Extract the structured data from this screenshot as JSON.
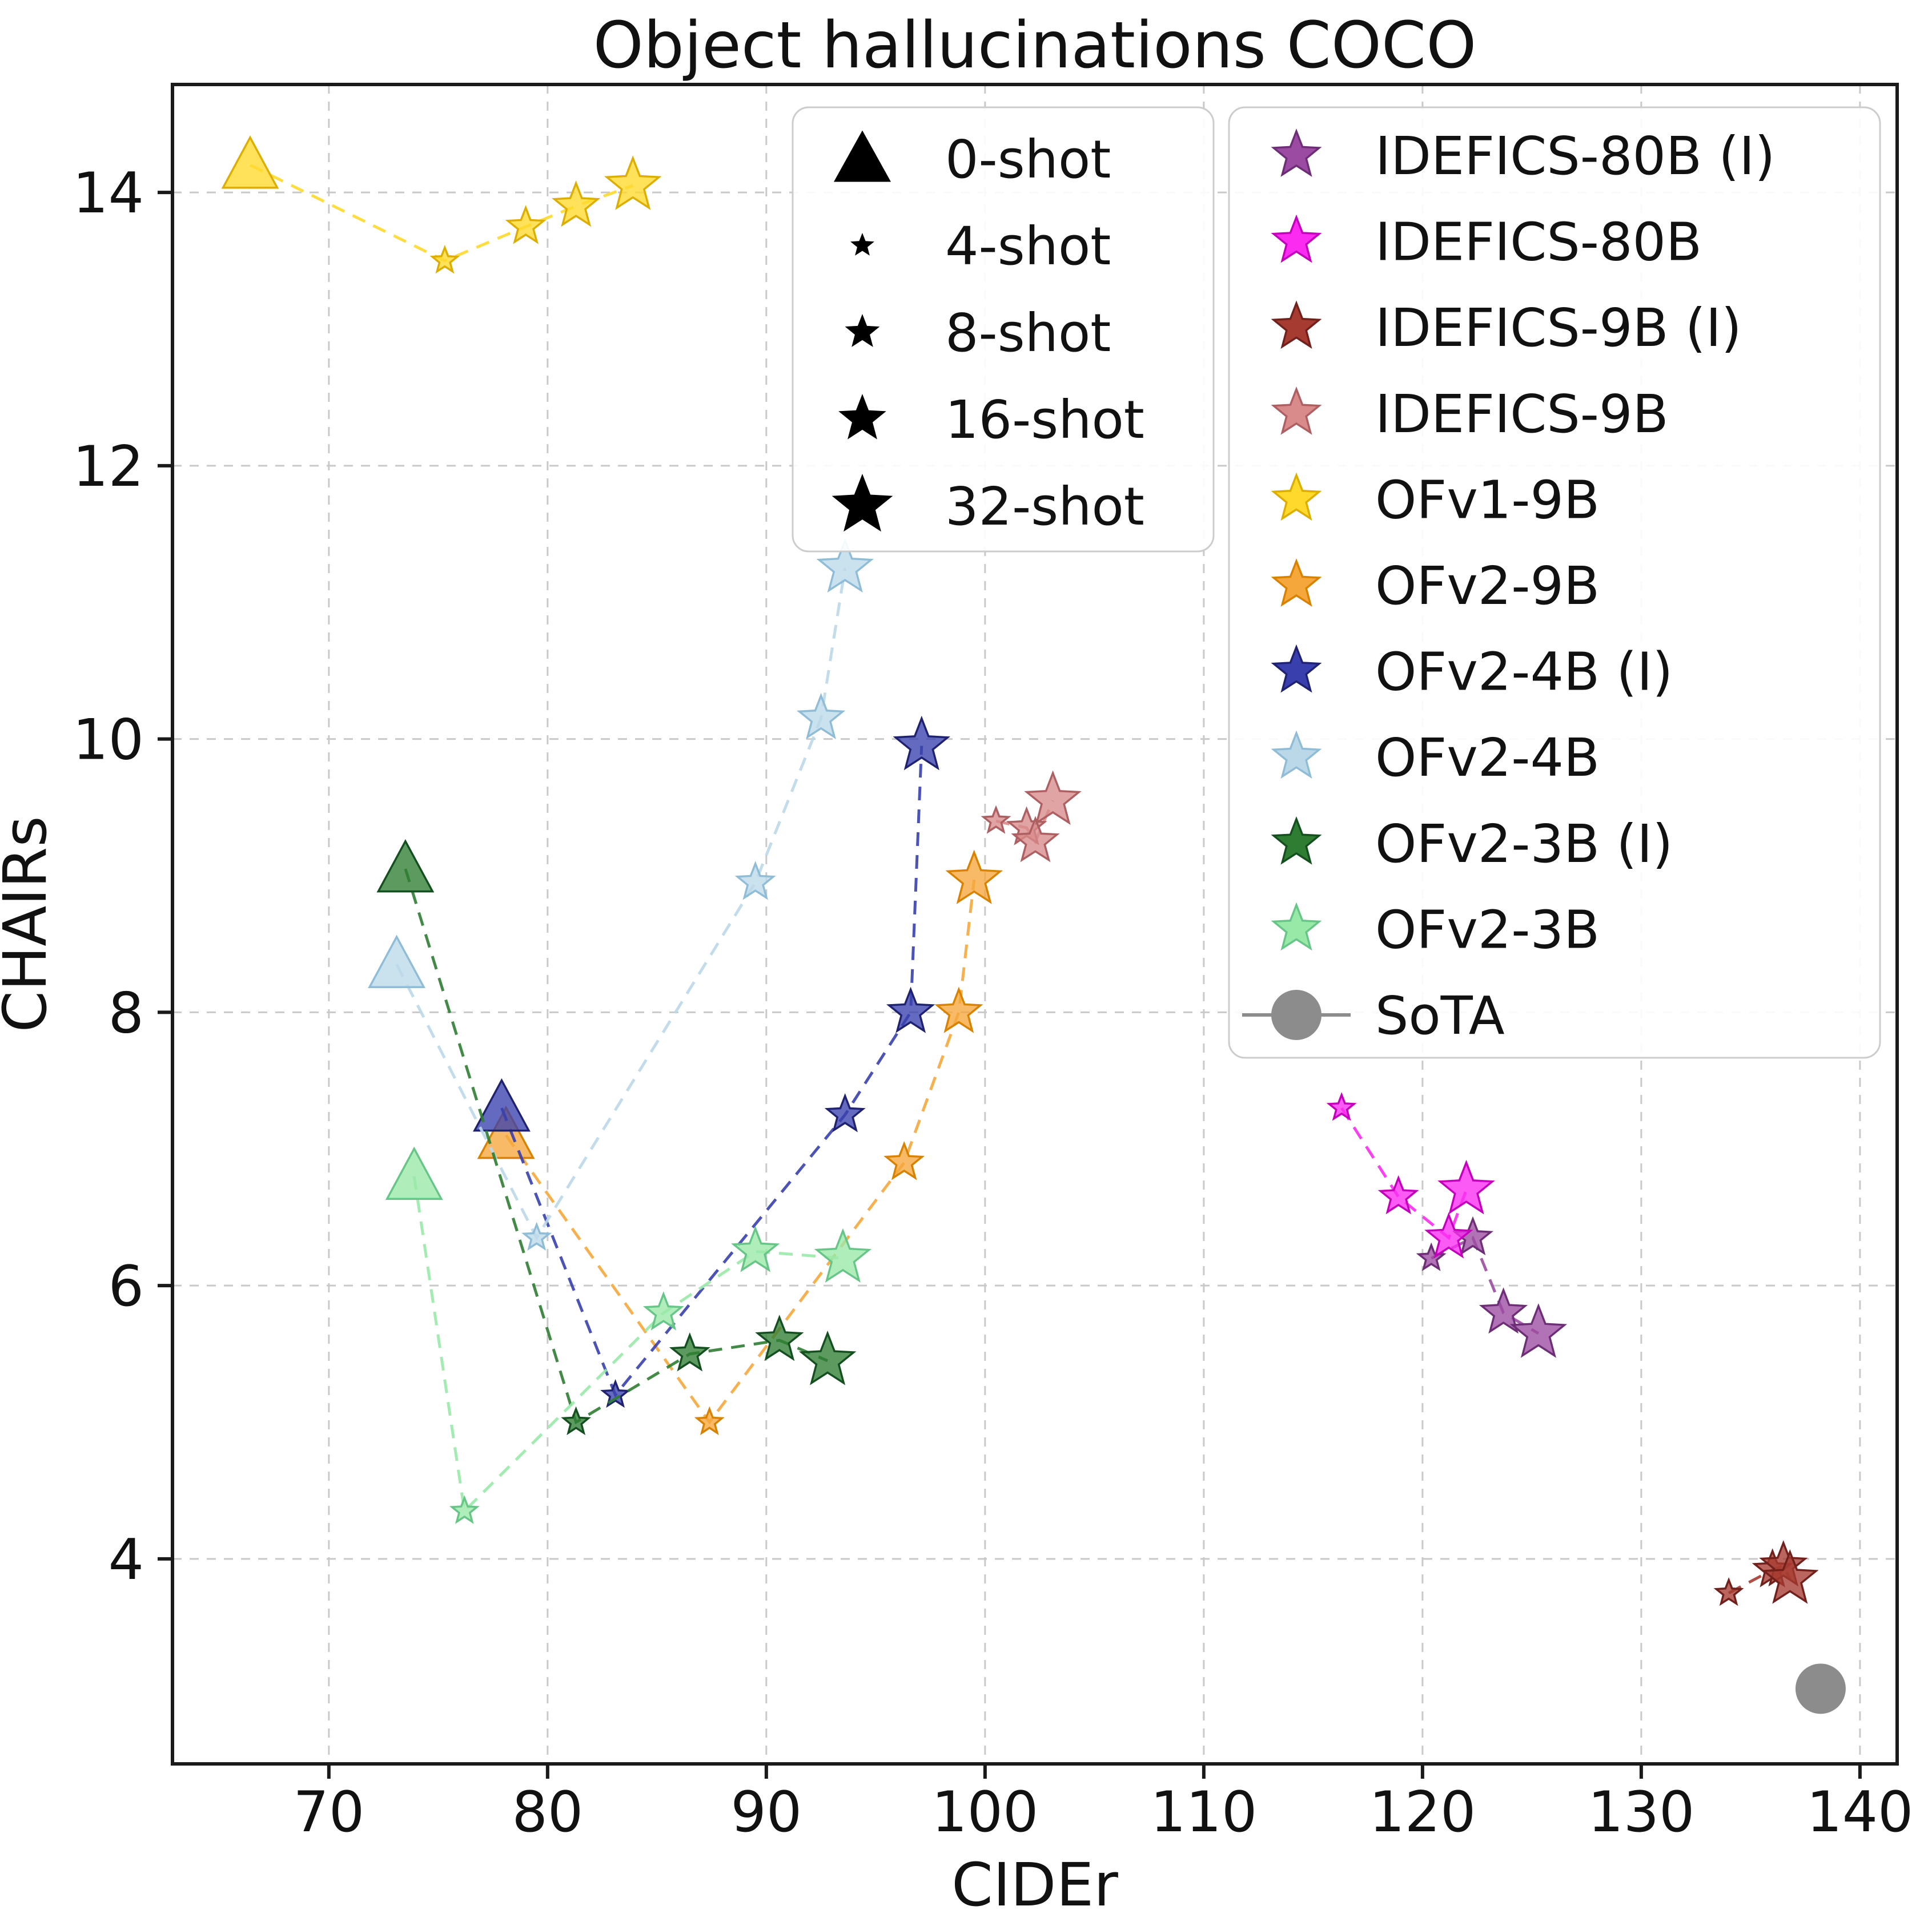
{
  "chart_data": {
    "type": "scatter",
    "title": "Object hallucinations COCO",
    "xlabel": "CIDEr",
    "ylabel": "CHAIRs",
    "xlim": [
      62.85,
      141.7
    ],
    "ylim": [
      2.5,
      14.79
    ],
    "xticks": [
      70,
      80,
      90,
      100,
      110,
      120,
      130,
      140
    ],
    "yticks": [
      4,
      6,
      8,
      10,
      12,
      14
    ],
    "grid": true,
    "legend_shots": [
      {
        "label": "0-shot",
        "marker": "triangle"
      },
      {
        "label": "4-shot",
        "marker": "star",
        "size_rank": 1
      },
      {
        "label": "8-shot",
        "marker": "star",
        "size_rank": 2
      },
      {
        "label": "16-shot",
        "marker": "star",
        "size_rank": 3
      },
      {
        "label": "32-shot",
        "marker": "star",
        "size_rank": 4
      }
    ],
    "series": [
      {
        "name": "IDEFICS-80B (I)",
        "color": "#9C4BA2",
        "edge": "#6E2E77",
        "line": "dashed",
        "points": [
          {
            "shot": "4",
            "x": 120.4,
            "y": 6.2
          },
          {
            "shot": "8",
            "x": 122.3,
            "y": 6.35
          },
          {
            "shot": "16",
            "x": 123.7,
            "y": 5.8
          },
          {
            "shot": "32",
            "x": 125.3,
            "y": 5.65
          }
        ]
      },
      {
        "name": "IDEFICS-80B",
        "color": "#FB2BF1",
        "edge": "#C400BC",
        "line": "dashed",
        "points": [
          {
            "shot": "4",
            "x": 116.3,
            "y": 7.3
          },
          {
            "shot": "8",
            "x": 118.9,
            "y": 6.65
          },
          {
            "shot": "16",
            "x": 121.2,
            "y": 6.35
          },
          {
            "shot": "32",
            "x": 122.0,
            "y": 6.7
          }
        ]
      },
      {
        "name": "IDEFICS-9B (I)",
        "color": "#A63B31",
        "edge": "#71201B",
        "line": "dashed",
        "points": [
          {
            "shot": "4",
            "x": 134.0,
            "y": 3.75
          },
          {
            "shot": "8",
            "x": 136.0,
            "y": 3.92
          },
          {
            "shot": "16",
            "x": 136.5,
            "y": 3.95
          },
          {
            "shot": "32",
            "x": 136.8,
            "y": 3.85
          }
        ]
      },
      {
        "name": "IDEFICS-9B",
        "color": "#D98A8A",
        "edge": "#AE5F62",
        "line": "dashed",
        "points": [
          {
            "shot": "4",
            "x": 100.5,
            "y": 9.4
          },
          {
            "shot": "8",
            "x": 101.9,
            "y": 9.35
          },
          {
            "shot": "16",
            "x": 102.3,
            "y": 9.25
          },
          {
            "shot": "32",
            "x": 103.1,
            "y": 9.55
          }
        ]
      },
      {
        "name": "OFv1-9B",
        "color": "#FFD92B",
        "edge": "#DDAE00",
        "line": "dashed",
        "points": [
          {
            "shot": "0",
            "x": 66.4,
            "y": 14.2
          },
          {
            "shot": "4",
            "x": 75.3,
            "y": 13.5
          },
          {
            "shot": "8",
            "x": 79.0,
            "y": 13.75
          },
          {
            "shot": "16",
            "x": 81.3,
            "y": 13.9
          },
          {
            "shot": "32",
            "x": 83.9,
            "y": 14.05
          }
        ]
      },
      {
        "name": "OFv2-9B",
        "color": "#F6A73B",
        "edge": "#D98200",
        "line": "dashed",
        "points": [
          {
            "shot": "0",
            "x": 78.1,
            "y": 7.1
          },
          {
            "shot": "4",
            "x": 87.4,
            "y": 5.0
          },
          {
            "shot": "8",
            "x": 96.3,
            "y": 6.9
          },
          {
            "shot": "16",
            "x": 98.8,
            "y": 8.0
          },
          {
            "shot": "32",
            "x": 99.5,
            "y": 8.97
          }
        ]
      },
      {
        "name": "OFv2-4B (I)",
        "color": "#3940AE",
        "edge": "#1E2270",
        "line": "dashed",
        "points": [
          {
            "shot": "0",
            "x": 77.9,
            "y": 7.3
          },
          {
            "shot": "4",
            "x": 83.1,
            "y": 5.2
          },
          {
            "shot": "8",
            "x": 93.6,
            "y": 7.25
          },
          {
            "shot": "16",
            "x": 96.6,
            "y": 8.0
          },
          {
            "shot": "32",
            "x": 97.1,
            "y": 9.95
          }
        ]
      },
      {
        "name": "OFv2-4B",
        "color": "#BBD8E9",
        "edge": "#8FBCD6",
        "line": "dashed",
        "points": [
          {
            "shot": "0",
            "x": 73.1,
            "y": 8.35
          },
          {
            "shot": "4",
            "x": 79.5,
            "y": 6.35
          },
          {
            "shot": "8",
            "x": 89.5,
            "y": 8.95
          },
          {
            "shot": "16",
            "x": 92.5,
            "y": 10.15
          },
          {
            "shot": "32",
            "x": 93.6,
            "y": 11.25
          }
        ]
      },
      {
        "name": "OFv2-3B (I)",
        "color": "#2E7D32",
        "edge": "#14501F",
        "line": "dashed",
        "points": [
          {
            "shot": "0",
            "x": 73.5,
            "y": 9.05
          },
          {
            "shot": "4",
            "x": 81.3,
            "y": 5.0
          },
          {
            "shot": "8",
            "x": 86.5,
            "y": 5.5
          },
          {
            "shot": "16",
            "x": 90.6,
            "y": 5.6
          },
          {
            "shot": "32",
            "x": 92.8,
            "y": 5.45
          }
        ]
      },
      {
        "name": "OFv2-3B",
        "color": "#98E9A8",
        "edge": "#67C687",
        "line": "dashed",
        "points": [
          {
            "shot": "0",
            "x": 73.9,
            "y": 6.8
          },
          {
            "shot": "4",
            "x": 76.2,
            "y": 4.35
          },
          {
            "shot": "8",
            "x": 85.3,
            "y": 5.8
          },
          {
            "shot": "16",
            "x": 89.5,
            "y": 6.25
          },
          {
            "shot": "32",
            "x": 93.5,
            "y": 6.2
          }
        ]
      }
    ],
    "sota": {
      "name": "SoTA",
      "color": "#8C8C8C",
      "x": 138.2,
      "y": 3.05
    },
    "grid_color": "#c9c9c9",
    "spine_color": "#1a1a1a",
    "legend_marker_color": "#000000"
  }
}
